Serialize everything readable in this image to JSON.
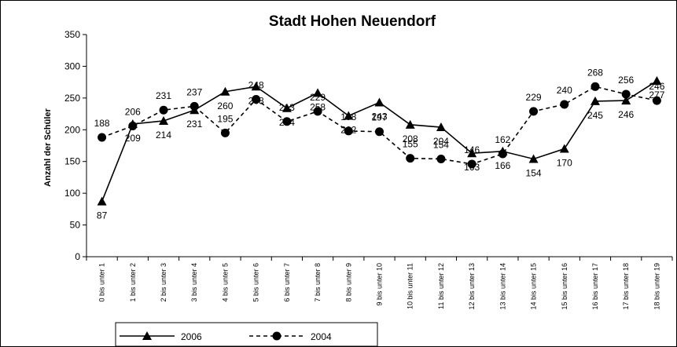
{
  "chart_data": {
    "type": "line",
    "title": "Stadt Hohen Neuendorf",
    "y_label": "Anzahl der Schüler",
    "categories": [
      "0 bis unter 1",
      "1 bis unter 2",
      "2 bis unter 3",
      "3 bis unter 4",
      "4 bis unter 5",
      "5 bis unter 6",
      "6 bis unter 7",
      "7 bis unter 8",
      "8 bis unter 9",
      "9 bis unter 10",
      "10 bis unter 11",
      "11 bis unter 12",
      "12 bis unter 13",
      "13 bis unter 14",
      "14 bis unter 15",
      "15 bis unter 16",
      "16 bis unter 17",
      "17 bis unter 18",
      "18 bis unter 19"
    ],
    "series": [
      {
        "name": "2006",
        "color": "#000000",
        "marker": "triangle",
        "line_style": "solid",
        "label_position": "below",
        "values": [
          87,
          209,
          214,
          231,
          260,
          268,
          234,
          258,
          222,
          243,
          208,
          204,
          163,
          166,
          154,
          170,
          245,
          246,
          277
        ]
      },
      {
        "name": "2004",
        "color": "#000000",
        "marker": "circle",
        "line_style": "dashed",
        "label_position": "above",
        "values": [
          188,
          206,
          231,
          237,
          195,
          248,
          213,
          229,
          198,
          197,
          155,
          154,
          146,
          162,
          229,
          240,
          268,
          256,
          246
        ]
      }
    ],
    "ylim": [
      0,
      350
    ],
    "yticks": [
      0,
      50,
      100,
      150,
      200,
      250,
      300,
      350
    ],
    "grid": false,
    "legend": "bottom"
  }
}
